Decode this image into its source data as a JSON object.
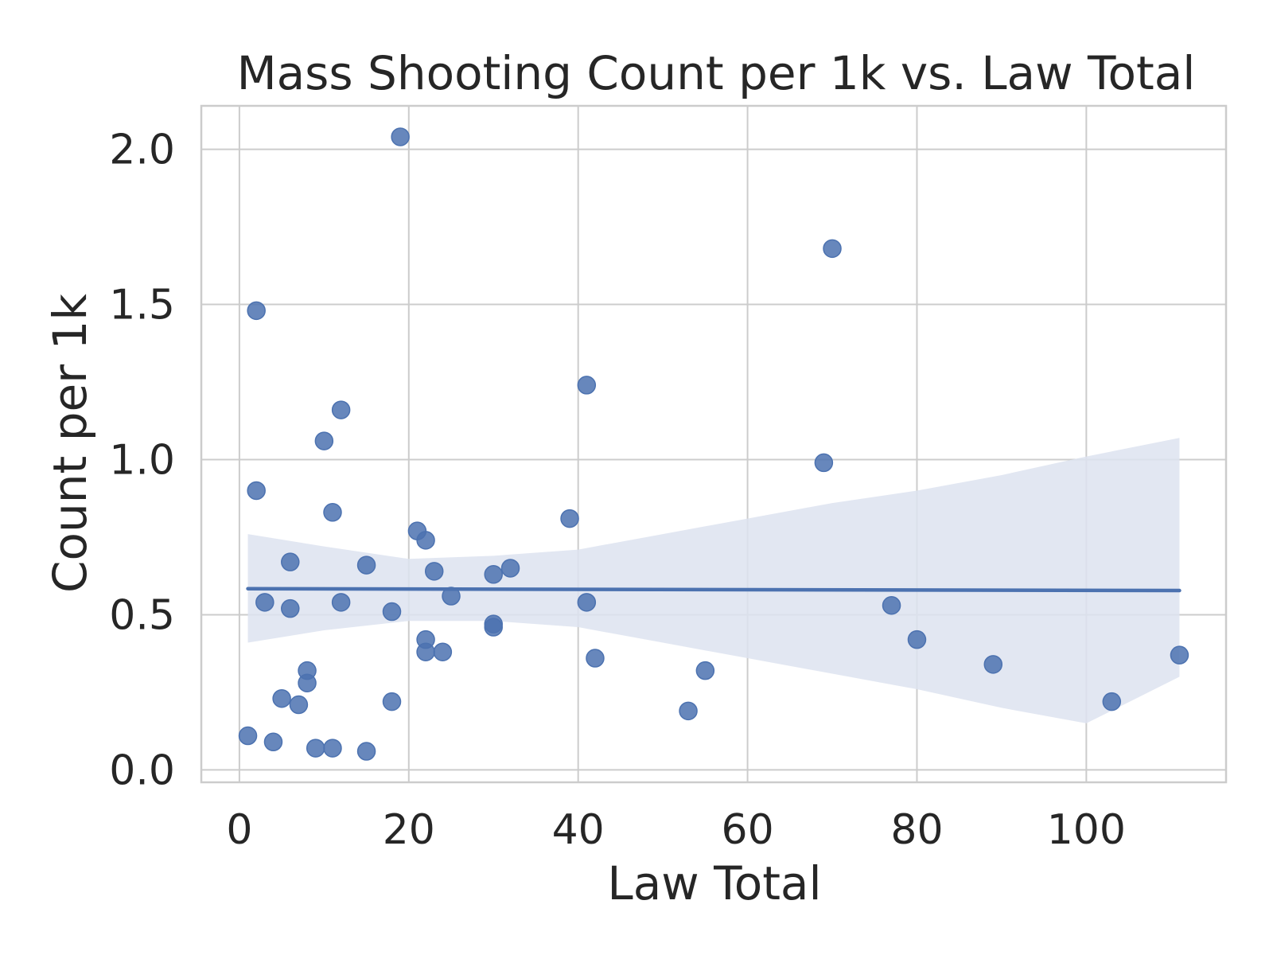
{
  "colors": {
    "series": "#4c72b0",
    "band": "#dde3f0",
    "background": "#ffffff",
    "grid": "#cccccc",
    "text": "#262626"
  },
  "chart_data": {
    "type": "scatter",
    "title": "Mass Shooting Count per 1k vs. Law Total",
    "xlabel": "Law Total",
    "ylabel": "Count per 1k",
    "xlim": [
      -4.5,
      116.5
    ],
    "ylim": [
      -0.04,
      2.14
    ],
    "xticks": [
      0,
      20,
      40,
      60,
      80,
      100
    ],
    "xtick_labels": [
      "0",
      "20",
      "40",
      "60",
      "80",
      "100"
    ],
    "yticks": [
      0.0,
      0.5,
      1.0,
      1.5,
      2.0
    ],
    "ytick_labels": [
      "0.0",
      "0.5",
      "1.0",
      "1.5",
      "2.0"
    ],
    "grid": true,
    "legend": "none",
    "series": [
      {
        "points": [
          [
            1,
            0.11
          ],
          [
            2,
            1.48
          ],
          [
            2,
            0.9
          ],
          [
            3,
            0.54
          ],
          [
            4,
            0.09
          ],
          [
            5,
            0.23
          ],
          [
            6,
            0.67
          ],
          [
            6,
            0.52
          ],
          [
            7,
            0.21
          ],
          [
            8,
            0.32
          ],
          [
            8,
            0.28
          ],
          [
            9,
            0.07
          ],
          [
            10,
            1.06
          ],
          [
            11,
            0.83
          ],
          [
            11,
            0.07
          ],
          [
            12,
            1.16
          ],
          [
            12,
            0.54
          ],
          [
            15,
            0.66
          ],
          [
            15,
            0.06
          ],
          [
            18,
            0.51
          ],
          [
            18,
            0.22
          ],
          [
            19,
            2.04
          ],
          [
            21,
            0.77
          ],
          [
            22,
            0.74
          ],
          [
            22,
            0.42
          ],
          [
            22,
            0.38
          ],
          [
            23,
            0.64
          ],
          [
            24,
            0.38
          ],
          [
            25,
            0.56
          ],
          [
            30,
            0.63
          ],
          [
            30,
            0.47
          ],
          [
            30,
            0.46
          ],
          [
            32,
            0.65
          ],
          [
            39,
            0.81
          ],
          [
            41,
            1.24
          ],
          [
            41,
            0.54
          ],
          [
            42,
            0.36
          ],
          [
            53,
            0.19
          ],
          [
            55,
            0.32
          ],
          [
            69,
            0.99
          ],
          [
            70,
            1.68
          ],
          [
            77,
            0.53
          ],
          [
            80,
            0.42
          ],
          [
            89,
            0.34
          ],
          [
            103,
            0.22
          ],
          [
            111,
            0.37
          ]
        ]
      }
    ],
    "regression": {
      "line": [
        [
          1,
          0.584
        ],
        [
          111,
          0.578
        ]
      ],
      "ci_upper": [
        [
          1,
          0.76
        ],
        [
          10,
          0.72
        ],
        [
          20,
          0.68
        ],
        [
          30,
          0.69
        ],
        [
          40,
          0.71
        ],
        [
          50,
          0.76
        ],
        [
          60,
          0.81
        ],
        [
          70,
          0.86
        ],
        [
          80,
          0.9
        ],
        [
          90,
          0.95
        ],
        [
          100,
          1.01
        ],
        [
          111,
          1.07
        ]
      ],
      "ci_lower": [
        [
          1,
          0.41
        ],
        [
          10,
          0.45
        ],
        [
          20,
          0.48
        ],
        [
          30,
          0.48
        ],
        [
          40,
          0.46
        ],
        [
          50,
          0.41
        ],
        [
          60,
          0.36
        ],
        [
          70,
          0.31
        ],
        [
          80,
          0.26
        ],
        [
          90,
          0.2
        ],
        [
          100,
          0.15
        ],
        [
          111,
          0.3
        ]
      ]
    }
  }
}
